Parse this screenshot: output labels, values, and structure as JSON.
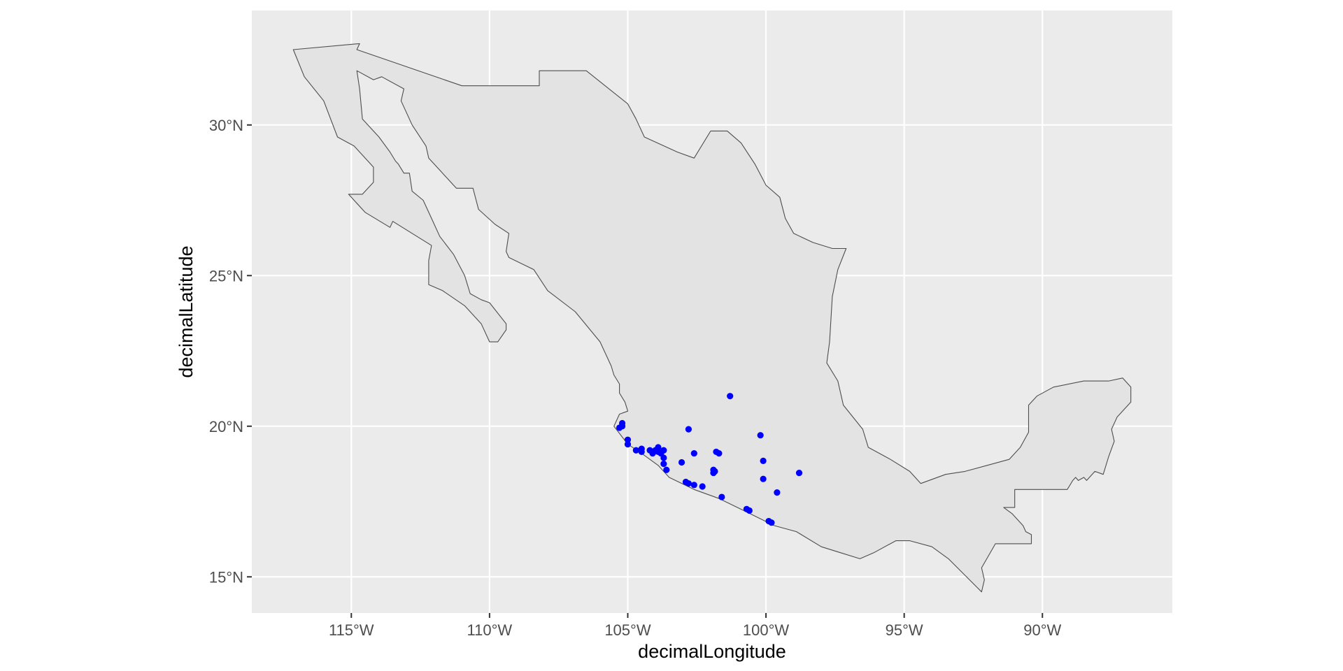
{
  "chart_data": {
    "type": "scatter",
    "title": "",
    "xlabel": "decimalLongitude",
    "ylabel": "decimalLatitude",
    "xlim": [
      -118.6,
      -85.3
    ],
    "ylim": [
      13.8,
      33.8
    ],
    "x_ticks": [
      {
        "value": -115,
        "label": "115°W"
      },
      {
        "value": -110,
        "label": "110°W"
      },
      {
        "value": -105,
        "label": "105°W"
      },
      {
        "value": -100,
        "label": "100°W"
      },
      {
        "value": -95,
        "label": "95°W"
      },
      {
        "value": -90,
        "label": "90°W"
      }
    ],
    "y_ticks": [
      {
        "value": 15,
        "label": "15°N"
      },
      {
        "value": 20,
        "label": "20°N"
      },
      {
        "value": 25,
        "label": "25°N"
      },
      {
        "value": 30,
        "label": "30°N"
      }
    ],
    "grid": true,
    "colors": {
      "panel_bg": "#ebebeb",
      "grid": "#ffffff",
      "land_fill": "#e3e3e3",
      "land_stroke": "#4d4d4d",
      "points": "#0000ff"
    },
    "mainland_outline": [
      [
        -117.1,
        32.5
      ],
      [
        -114.7,
        32.7
      ],
      [
        -114.8,
        32.5
      ],
      [
        -111.0,
        31.3
      ],
      [
        -108.2,
        31.3
      ],
      [
        -108.2,
        31.8
      ],
      [
        -106.5,
        31.8
      ],
      [
        -105.0,
        30.7
      ],
      [
        -104.7,
        30.2
      ],
      [
        -104.4,
        29.6
      ],
      [
        -103.2,
        29.1
      ],
      [
        -102.6,
        28.9
      ],
      [
        -102.0,
        29.8
      ],
      [
        -101.4,
        29.8
      ],
      [
        -100.9,
        29.4
      ],
      [
        -100.4,
        28.7
      ],
      [
        -100.0,
        28.0
      ],
      [
        -99.5,
        27.6
      ],
      [
        -99.3,
        26.9
      ],
      [
        -99.0,
        26.4
      ],
      [
        -98.3,
        26.1
      ],
      [
        -97.6,
        25.9
      ],
      [
        -97.1,
        25.9
      ],
      [
        -97.4,
        25.2
      ],
      [
        -97.6,
        24.3
      ],
      [
        -97.7,
        22.8
      ],
      [
        -97.8,
        22.1
      ],
      [
        -97.4,
        21.5
      ],
      [
        -97.2,
        20.7
      ],
      [
        -96.5,
        19.9
      ],
      [
        -96.3,
        19.3
      ],
      [
        -95.5,
        18.9
      ],
      [
        -94.8,
        18.5
      ],
      [
        -94.4,
        18.1
      ],
      [
        -93.5,
        18.4
      ],
      [
        -92.8,
        18.5
      ],
      [
        -92.0,
        18.7
      ],
      [
        -91.2,
        18.9
      ],
      [
        -90.8,
        19.3
      ],
      [
        -90.5,
        19.8
      ],
      [
        -90.5,
        20.7
      ],
      [
        -90.2,
        21.0
      ],
      [
        -89.6,
        21.3
      ],
      [
        -88.5,
        21.5
      ],
      [
        -87.6,
        21.5
      ],
      [
        -87.1,
        21.6
      ],
      [
        -86.8,
        21.3
      ],
      [
        -86.8,
        20.8
      ],
      [
        -87.3,
        20.3
      ],
      [
        -87.5,
        19.9
      ],
      [
        -87.4,
        19.5
      ],
      [
        -87.6,
        19.0
      ],
      [
        -87.8,
        18.4
      ],
      [
        -88.1,
        18.5
      ],
      [
        -88.4,
        18.2
      ],
      [
        -88.5,
        18.3
      ],
      [
        -88.7,
        18.2
      ],
      [
        -88.8,
        18.3
      ],
      [
        -88.9,
        18.2
      ],
      [
        -89.1,
        17.9
      ],
      [
        -91.0,
        17.9
      ],
      [
        -91.0,
        17.3
      ],
      [
        -91.4,
        17.3
      ],
      [
        -91.1,
        17.1
      ],
      [
        -90.9,
        16.9
      ],
      [
        -90.7,
        16.7
      ],
      [
        -90.6,
        16.5
      ],
      [
        -90.4,
        16.4
      ],
      [
        -90.4,
        16.1
      ],
      [
        -91.7,
        16.1
      ],
      [
        -92.2,
        15.3
      ],
      [
        -92.1,
        14.9
      ],
      [
        -92.2,
        14.5
      ],
      [
        -93.4,
        15.6
      ],
      [
        -94.0,
        16.0
      ],
      [
        -94.8,
        16.2
      ],
      [
        -95.3,
        16.2
      ],
      [
        -96.1,
        15.8
      ],
      [
        -96.6,
        15.6
      ],
      [
        -97.3,
        15.8
      ],
      [
        -98.0,
        16.0
      ],
      [
        -98.9,
        16.5
      ],
      [
        -99.7,
        16.7
      ],
      [
        -100.8,
        17.2
      ],
      [
        -101.7,
        17.6
      ],
      [
        -102.6,
        17.9
      ],
      [
        -103.5,
        18.3
      ],
      [
        -103.9,
        18.7
      ],
      [
        -104.5,
        19.1
      ],
      [
        -105.0,
        19.4
      ],
      [
        -105.5,
        20.0
      ],
      [
        -105.3,
        20.4
      ],
      [
        -105.0,
        20.5
      ],
      [
        -105.1,
        20.8
      ],
      [
        -105.3,
        21.1
      ],
      [
        -105.3,
        21.4
      ],
      [
        -105.5,
        21.7
      ],
      [
        -105.6,
        22.0
      ],
      [
        -106.0,
        22.8
      ],
      [
        -106.9,
        23.8
      ],
      [
        -107.9,
        24.5
      ],
      [
        -108.4,
        25.2
      ],
      [
        -109.3,
        25.6
      ],
      [
        -109.4,
        25.8
      ],
      [
        -109.3,
        26.4
      ],
      [
        -109.8,
        26.7
      ],
      [
        -110.4,
        27.2
      ],
      [
        -110.6,
        27.9
      ],
      [
        -111.2,
        27.9
      ],
      [
        -111.8,
        28.5
      ],
      [
        -112.2,
        28.9
      ],
      [
        -112.3,
        29.3
      ],
      [
        -112.8,
        30.0
      ],
      [
        -113.2,
        30.8
      ],
      [
        -113.1,
        31.2
      ],
      [
        -113.9,
        31.6
      ],
      [
        -114.2,
        31.5
      ],
      [
        -114.8,
        31.8
      ],
      [
        -114.7,
        31.2
      ],
      [
        -114.6,
        30.2
      ],
      [
        -114.0,
        29.6
      ],
      [
        -113.6,
        29.1
      ],
      [
        -113.4,
        28.8
      ],
      [
        -113.3,
        28.7
      ],
      [
        -113.1,
        28.4
      ],
      [
        -112.9,
        28.4
      ],
      [
        -112.8,
        27.8
      ],
      [
        -112.4,
        27.5
      ],
      [
        -112.1,
        26.9
      ],
      [
        -111.8,
        26.3
      ],
      [
        -111.3,
        25.7
      ],
      [
        -110.9,
        25.0
      ],
      [
        -110.7,
        24.4
      ],
      [
        -110.3,
        24.2
      ],
      [
        -110.0,
        24.1
      ],
      [
        -109.4,
        23.4
      ],
      [
        -109.4,
        23.2
      ],
      [
        -109.7,
        22.8
      ],
      [
        -110.0,
        22.8
      ],
      [
        -110.3,
        23.4
      ],
      [
        -110.9,
        24.0
      ],
      [
        -111.7,
        24.5
      ],
      [
        -112.2,
        24.7
      ],
      [
        -112.2,
        25.5
      ],
      [
        -112.1,
        26.0
      ],
      [
        -113.5,
        26.8
      ],
      [
        -113.6,
        26.6
      ],
      [
        -114.5,
        27.1
      ],
      [
        -115.1,
        27.7
      ],
      [
        -114.6,
        27.7
      ],
      [
        -114.2,
        28.1
      ],
      [
        -114.2,
        28.6
      ],
      [
        -114.9,
        29.3
      ],
      [
        -115.5,
        29.6
      ],
      [
        -116.0,
        30.8
      ],
      [
        -116.7,
        31.6
      ],
      [
        -117.1,
        32.5
      ]
    ],
    "points": [
      [
        -101.3,
        21.0
      ],
      [
        -105.2,
        20.1
      ],
      [
        -105.2,
        20.0
      ],
      [
        -105.3,
        19.95
      ],
      [
        -102.8,
        19.9
      ],
      [
        -100.2,
        19.7
      ],
      [
        -105.0,
        19.55
      ],
      [
        -105.0,
        19.4
      ],
      [
        -104.7,
        19.2
      ],
      [
        -104.5,
        19.25
      ],
      [
        -104.5,
        19.15
      ],
      [
        -104.2,
        19.2
      ],
      [
        -104.0,
        19.2
      ],
      [
        -103.9,
        19.3
      ],
      [
        -103.9,
        19.15
      ],
      [
        -103.8,
        19.1
      ],
      [
        -103.7,
        19.2
      ],
      [
        -104.1,
        19.1
      ],
      [
        -103.7,
        18.95
      ],
      [
        -103.7,
        18.75
      ],
      [
        -103.6,
        18.55
      ],
      [
        -103.05,
        18.8
      ],
      [
        -102.6,
        19.1
      ],
      [
        -101.8,
        19.15
      ],
      [
        -101.7,
        19.1
      ],
      [
        -101.9,
        18.55
      ],
      [
        -101.9,
        18.45
      ],
      [
        -101.85,
        18.5
      ],
      [
        -100.1,
        18.85
      ],
      [
        -100.1,
        18.25
      ],
      [
        -98.8,
        18.45
      ],
      [
        -102.9,
        18.15
      ],
      [
        -102.8,
        18.1
      ],
      [
        -102.6,
        18.05
      ],
      [
        -102.3,
        18.0
      ],
      [
        -99.6,
        17.8
      ],
      [
        -101.6,
        17.65
      ],
      [
        -100.7,
        17.25
      ],
      [
        -100.6,
        17.2
      ],
      [
        -99.9,
        16.85
      ],
      [
        -99.8,
        16.8
      ]
    ]
  }
}
